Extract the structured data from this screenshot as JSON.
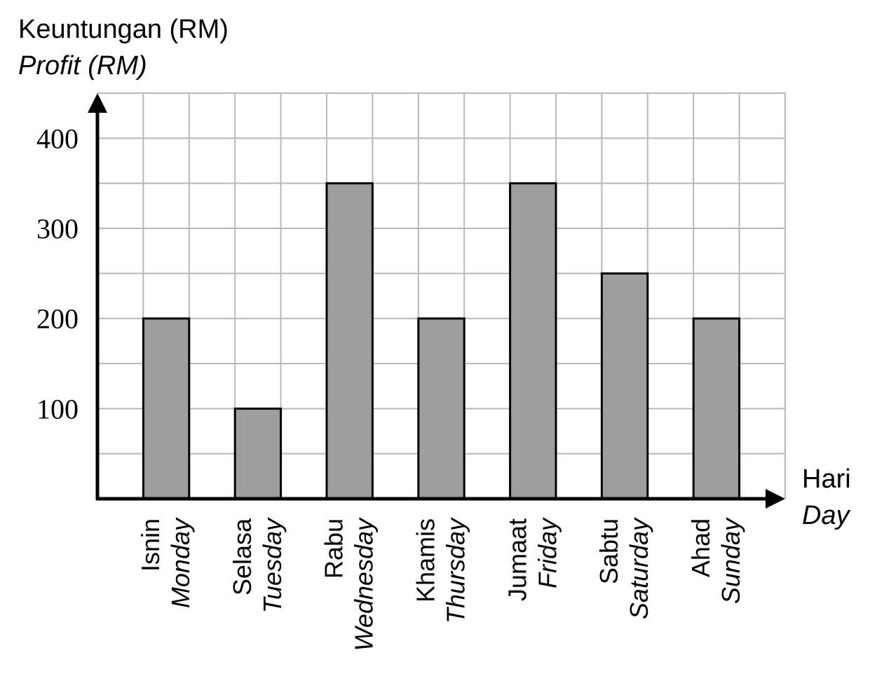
{
  "chart_data": {
    "type": "bar",
    "ylabel": "Keuntungan (RM)",
    "ylabel_en": "Profit (RM)",
    "xlabel": "Hari",
    "xlabel_en": "Day",
    "categories": [
      "Isnin",
      "Selasa",
      "Rabu",
      "Khamis",
      "Jumaat",
      "Sabtu",
      "Ahad"
    ],
    "categories_en": [
      "Monday",
      "Tuesday",
      "Wednesday",
      "Thursday",
      "Friday",
      "Saturday",
      "Sunday"
    ],
    "values": [
      200,
      100,
      350,
      200,
      350,
      250,
      200
    ],
    "yticks": [
      100,
      200,
      300,
      400
    ],
    "ylim": [
      0,
      450
    ],
    "grid": true,
    "bar_color": "#9e9e9e",
    "grid_color": "#b8b8b8",
    "axis_color": "#000000"
  }
}
